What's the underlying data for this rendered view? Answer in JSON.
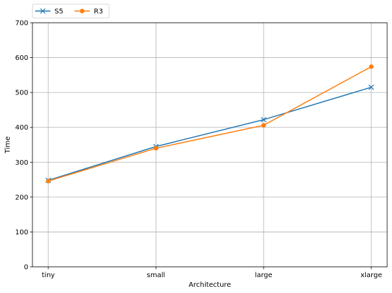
{
  "chart_data": {
    "type": "line",
    "title": "",
    "xlabel": "Architecture",
    "ylabel": "Time",
    "categories": [
      "tiny",
      "small",
      "large",
      "xlarge"
    ],
    "ylim": [
      0,
      700
    ],
    "yticks": [
      0,
      100,
      200,
      300,
      400,
      500,
      600,
      700
    ],
    "grid": true,
    "legend_position": "top-left, above plot",
    "series": [
      {
        "name": "S5",
        "color": "#1f77b4",
        "marker": "x",
        "values": [
          248,
          345,
          422,
          515
        ]
      },
      {
        "name": "R3",
        "color": "#ff7f0e",
        "marker": "circle",
        "values": [
          246,
          340,
          406,
          574
        ]
      }
    ]
  }
}
